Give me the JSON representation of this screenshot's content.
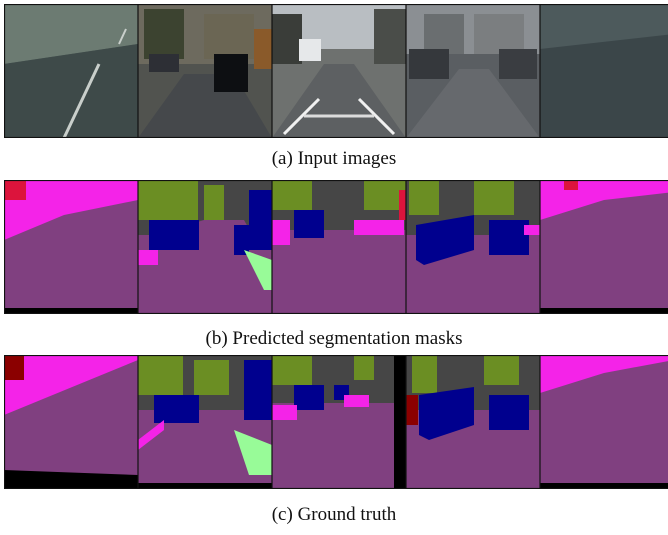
{
  "figure": {
    "rows": [
      {
        "caption": "(a) Input images",
        "panel_count": 5
      },
      {
        "caption": "(b) Predicted segmentation masks",
        "panel_count": 5
      },
      {
        "caption": "(c) Ground truth",
        "panel_count": 5
      }
    ]
  },
  "colors": {
    "road": "#804080",
    "sidewalk": "#f423e8",
    "vegetation": "#6b8e23",
    "building": "#464646",
    "car": "#00008e",
    "void": "#000000",
    "person": "#dc143c",
    "terrain": "#98fb98"
  }
}
